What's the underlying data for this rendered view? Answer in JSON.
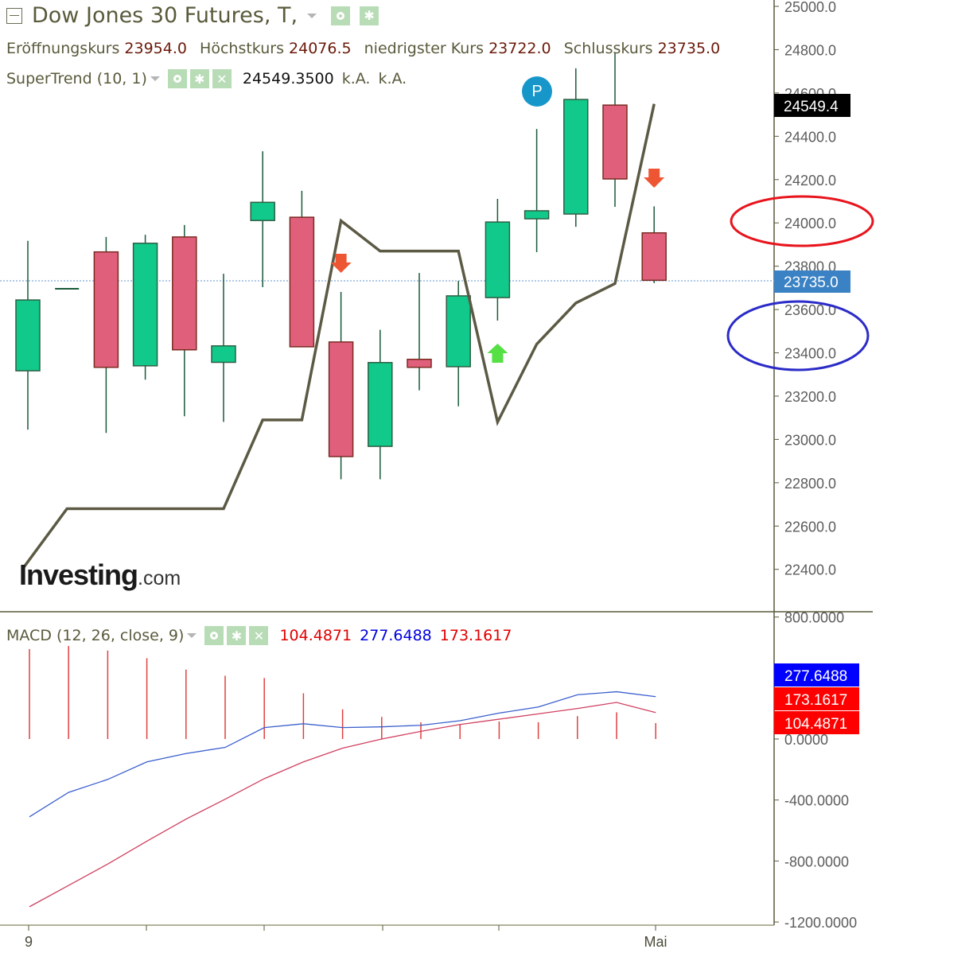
{
  "header": {
    "instrument": "Dow Jones 30 Futures, T,",
    "ohlc": [
      {
        "label": "Eröffnungskurs",
        "value": "23954.0"
      },
      {
        "label": "Höchstkurs",
        "value": "24076.5"
      },
      {
        "label": "niedrigster Kurs",
        "value": "23722.0"
      },
      {
        "label": "Schlusskurs",
        "value": "23735.0"
      }
    ]
  },
  "supertrend": {
    "label": "SuperTrend (10, 1)",
    "value": "24549.3500",
    "na1": "k.A.",
    "na2": "k.A."
  },
  "macd": {
    "label": "MACD (12, 26, close, 9)",
    "v1": "104.4871",
    "v2": "277.6488",
    "v3": "173.1617"
  },
  "logo": {
    "main": "Investing",
    "suffix": ".com"
  },
  "marker": {
    "label": "P"
  },
  "colors": {
    "bull": "#10c98a",
    "bear": "#e0607c",
    "wick": "#1a5a3a",
    "supertrend": "#5c5a44",
    "macd_line": "#3a5fcd",
    "signal_line": "#d04060",
    "histogram": "#e04040",
    "price_tag": "#3b82c4",
    "st_tag": "#000000",
    "macd_tag": "#0000ff",
    "signal_tag": "#ff0000",
    "annotation_red": "#e8141c",
    "annotation_blue": "#2b2bc8"
  },
  "chart_data": [
    {
      "type": "candlestick",
      "title": "Dow Jones 30 Futures, T,",
      "ylabel": "",
      "ylim": [
        22300,
        25030
      ],
      "yticks": [
        "25000.0",
        "24800.0",
        "24600.0",
        "24400.0",
        "24200.0",
        "24000.0",
        "23800.0",
        "23600.0",
        "23400.0",
        "23200.0",
        "23000.0",
        "22800.0",
        "22600.0",
        "22400.0"
      ],
      "x_tick_labels": [
        "9",
        "",
        "",
        "",
        "",
        "Mai"
      ],
      "candles": [
        {
          "open": 23317,
          "high": 23917,
          "low": 23045,
          "close": 23644
        },
        {
          "open": 23696,
          "high": 23696,
          "low": 23696,
          "close": 23696
        },
        {
          "open": 23866,
          "high": 23935,
          "low": 23030,
          "close": 23333
        },
        {
          "open": 23340,
          "high": 23945,
          "low": 23276,
          "close": 23906
        },
        {
          "open": 23935,
          "high": 23990,
          "low": 23107,
          "close": 23414
        },
        {
          "open": 23356,
          "high": 23765,
          "low": 23081,
          "close": 23432
        },
        {
          "open": 24011,
          "high": 24331,
          "low": 23703,
          "close": 24095
        },
        {
          "open": 24026,
          "high": 24148,
          "low": 23429,
          "close": 23428
        },
        {
          "open": 23450,
          "high": 23681,
          "low": 22816,
          "close": 22921
        },
        {
          "open": 22968,
          "high": 23506,
          "low": 22816,
          "close": 23355
        },
        {
          "open": 23370,
          "high": 23769,
          "low": 23227,
          "close": 23333
        },
        {
          "open": 23336,
          "high": 23732,
          "low": 23153,
          "close": 23663
        },
        {
          "open": 23655,
          "high": 24111,
          "low": 23549,
          "close": 24004
        },
        {
          "open": 24019,
          "high": 24434,
          "low": 23865,
          "close": 24056
        },
        {
          "open": 24041,
          "high": 24714,
          "low": 23982,
          "close": 24570
        },
        {
          "open": 24544,
          "high": 24788,
          "low": 24074,
          "close": 24203
        },
        {
          "open": 23954,
          "high": 24076.5,
          "low": 23722,
          "close": 23735
        }
      ],
      "supertrend": [
        22400,
        22680,
        22680,
        22680,
        22680,
        22680,
        23090,
        23090,
        24010,
        23870,
        23870,
        23870,
        23080,
        23440,
        23630,
        23720,
        24549.35
      ],
      "current_price": "23735.0",
      "supertrend_tag": "24549.4",
      "signals": [
        {
          "index": 8,
          "type": "sell"
        },
        {
          "index": 12,
          "type": "buy"
        },
        {
          "index": 16,
          "type": "sell"
        }
      ],
      "annotations": [
        {
          "shape": "ellipse",
          "color": "red",
          "around": "24000.0"
        },
        {
          "shape": "ellipse",
          "color": "blue",
          "around": "23400.0-23600.0"
        }
      ]
    },
    {
      "type": "line",
      "title": "MACD (12, 26, close, 9)",
      "ylim": [
        -1200,
        800
      ],
      "yticks": [
        "800.0000",
        "0.0000",
        "-400.0000",
        "-800.0000",
        "-1200.0000"
      ],
      "series": [
        {
          "name": "MACD",
          "color": "blue",
          "values": [
            -510,
            -350,
            -265,
            -150,
            -95,
            -55,
            75,
            100,
            75,
            80,
            90,
            120,
            170,
            210,
            290,
            310,
            277.6488
          ]
        },
        {
          "name": "Signal",
          "color": "red",
          "values": [
            -1100,
            -960,
            -820,
            -670,
            -525,
            -395,
            -260,
            -150,
            -60,
            0,
            50,
            95,
            130,
            165,
            200,
            240,
            173.1617
          ]
        },
        {
          "name": "Histogram",
          "color": "red",
          "values": [
            590,
            610,
            580,
            530,
            455,
            415,
            400,
            300,
            195,
            145,
            110,
            95,
            115,
            110,
            150,
            175,
            104.4871
          ]
        }
      ]
    }
  ]
}
